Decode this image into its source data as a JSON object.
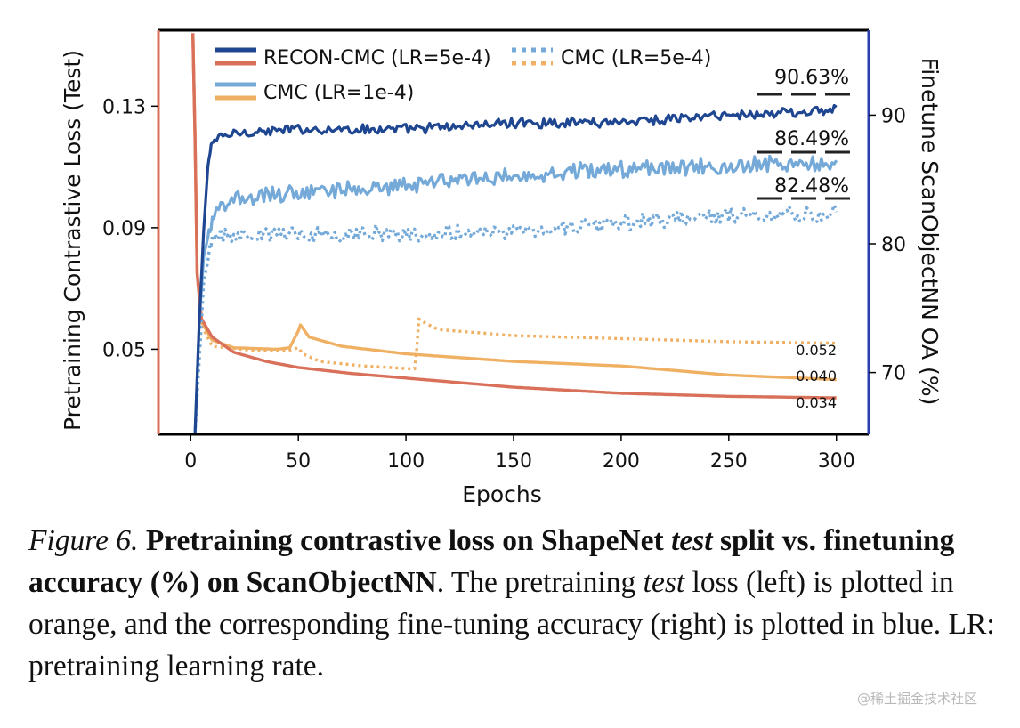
{
  "chart_data": {
    "type": "line",
    "title": "",
    "xlabel": "Epochs",
    "ylabel_left": "Pretraining Contrastive Loss (Test)",
    "ylabel_right": "Finetune ScanObjectNN OA (%)",
    "xlim": [
      -15,
      315
    ],
    "ylim_left": [
      0.022,
      0.155
    ],
    "ylim_right": [
      65.2,
      96.6
    ],
    "xticks": [
      0,
      50,
      100,
      150,
      200,
      250,
      300
    ],
    "xtick_labels": [
      "0",
      "50",
      "100",
      "150",
      "200",
      "250",
      "300"
    ],
    "yticks_left": [
      0.13,
      0.09,
      0.05
    ],
    "ytick_labels_left": [
      "0.13",
      "0.09",
      "0.05"
    ],
    "yticks_right": [
      90,
      80,
      70
    ],
    "ytick_labels_right": [
      "90",
      "80",
      "70"
    ],
    "grid": false,
    "legend_position": "top-left",
    "legend": [
      {
        "label": "RECON-CMC (LR=5e-4)",
        "colors": [
          "#1f4690",
          "#d9705a"
        ],
        "style": "solid"
      },
      {
        "label": "CMC (LR=5e-4)",
        "colors": [
          "#74a9d8",
          "#f0b063"
        ],
        "style": "dotted"
      },
      {
        "label": "CMC (LR=1e-4)",
        "colors": [
          "#74a9d8",
          "#f0b063"
        ],
        "style": "solid"
      }
    ],
    "series": [
      {
        "name": "RECON-CMC (LR=5e-4) accuracy",
        "axis": "right",
        "color": "#1f4690",
        "style": "solid",
        "anchors": [
          [
            2,
            65.2
          ],
          [
            4,
            74
          ],
          [
            6,
            81
          ],
          [
            8,
            86
          ],
          [
            10,
            88
          ],
          [
            20,
            88.6
          ],
          [
            50,
            88.9
          ],
          [
            100,
            88.9
          ],
          [
            150,
            89.4
          ],
          [
            200,
            89.5
          ],
          [
            250,
            90.0
          ],
          [
            300,
            90.4
          ]
        ],
        "noise": 0.35,
        "final": 90.63,
        "final_label": "90.63%"
      },
      {
        "name": "CMC (LR=1e-4) accuracy",
        "axis": "right",
        "color": "#74a9d8",
        "style": "solid",
        "anchors": [
          [
            2,
            65.2
          ],
          [
            4,
            74
          ],
          [
            6,
            79
          ],
          [
            10,
            82
          ],
          [
            20,
            83.5
          ],
          [
            50,
            84.0
          ],
          [
            100,
            84.6
          ],
          [
            150,
            85.3
          ],
          [
            200,
            85.8
          ],
          [
            250,
            86.0
          ],
          [
            300,
            86.3
          ]
        ],
        "noise": 0.6,
        "final": 86.49,
        "final_label": "86.49%"
      },
      {
        "name": "CMC (LR=5e-4) accuracy",
        "axis": "right",
        "color": "#74a9d8",
        "style": "dotted",
        "anchors": [
          [
            2,
            65.2
          ],
          [
            4,
            71
          ],
          [
            6,
            77
          ],
          [
            10,
            80.3
          ],
          [
            20,
            80.8
          ],
          [
            50,
            80.8
          ],
          [
            100,
            80.8
          ],
          [
            150,
            81.0
          ],
          [
            200,
            81.6
          ],
          [
            250,
            82.2
          ],
          [
            300,
            82.3
          ]
        ],
        "noise": 0.6,
        "final": 82.48,
        "final_label": "82.48%"
      },
      {
        "name": "RECON-CMC (LR=5e-4) loss",
        "axis": "left",
        "color": "#d9705a",
        "style": "solid",
        "anchors": [
          [
            1,
            0.154
          ],
          [
            2,
            0.12
          ],
          [
            3,
            0.075
          ],
          [
            5,
            0.06
          ],
          [
            10,
            0.054
          ],
          [
            20,
            0.049
          ],
          [
            35,
            0.046
          ],
          [
            50,
            0.044
          ],
          [
            75,
            0.042
          ],
          [
            100,
            0.0405
          ],
          [
            150,
            0.0375
          ],
          [
            200,
            0.0355
          ],
          [
            250,
            0.0345
          ],
          [
            300,
            0.034
          ]
        ],
        "noise": 0.0,
        "final": 0.034,
        "final_label": "0.034"
      },
      {
        "name": "CMC (LR=1e-4) loss",
        "axis": "left",
        "color": "#f0b063",
        "style": "solid",
        "anchors": [
          [
            1,
            0.154
          ],
          [
            2,
            0.12
          ],
          [
            3,
            0.075
          ],
          [
            5,
            0.059
          ],
          [
            10,
            0.053
          ],
          [
            20,
            0.0505
          ],
          [
            40,
            0.05
          ],
          [
            46,
            0.0505
          ],
          [
            50,
            0.056
          ],
          [
            51,
            0.058
          ],
          [
            55,
            0.054
          ],
          [
            70,
            0.051
          ],
          [
            100,
            0.0485
          ],
          [
            150,
            0.046
          ],
          [
            200,
            0.0445
          ],
          [
            250,
            0.0415
          ],
          [
            300,
            0.04
          ]
        ],
        "noise": 0.0,
        "final": 0.04,
        "final_label": "0.040"
      },
      {
        "name": "CMC (LR=5e-4) loss",
        "axis": "left",
        "color": "#f0b063",
        "style": "dotted",
        "anchors": [
          [
            1,
            0.154
          ],
          [
            2,
            0.12
          ],
          [
            3,
            0.075
          ],
          [
            5,
            0.058
          ],
          [
            10,
            0.051
          ],
          [
            30,
            0.0495
          ],
          [
            45,
            0.0495
          ],
          [
            50,
            0.0505
          ],
          [
            52,
            0.0485
          ],
          [
            60,
            0.046
          ],
          [
            80,
            0.0445
          ],
          [
            104,
            0.0435
          ],
          [
            105,
            0.05
          ],
          [
            106,
            0.06
          ],
          [
            108,
            0.059
          ],
          [
            115,
            0.0565
          ],
          [
            150,
            0.0545
          ],
          [
            200,
            0.0535
          ],
          [
            250,
            0.0525
          ],
          [
            300,
            0.052
          ]
        ],
        "noise": 0.0,
        "final": 0.052,
        "final_label": "0.052"
      }
    ]
  },
  "caption": {
    "figure_label": "Figure 6.",
    "bold_part1": "Pretraining contrastive loss on ShapeNet ",
    "bold_italic": "test",
    "bold_part2": " split vs. finetuning accuracy (%) on ScanObjectNN",
    "text_part1": ". The pretraining ",
    "text_italic": "test",
    "text_part2": " loss (left) is plotted in orange, and the corresponding fine-tuning accuracy (right) is plotted in blue. LR: pretraining learning rate."
  },
  "watermark": "@稀土掘金技术社区",
  "colors": {
    "left_spine": "#d9705a",
    "right_spine": "#2a3fb0",
    "frame": "#000000"
  }
}
